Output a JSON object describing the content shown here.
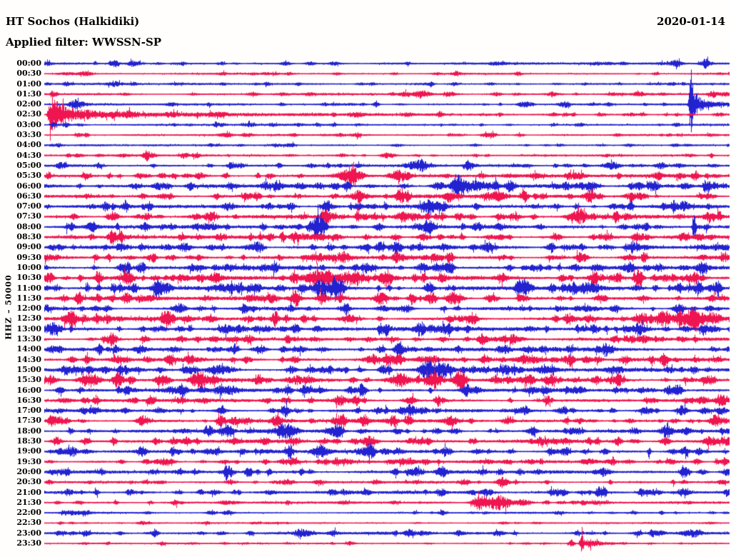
{
  "header": {
    "station_title": "HT Sochos (Halkidiki)",
    "date": "2020-01-14",
    "filter_label": "Applied filter: WWSSN-SP"
  },
  "axis": {
    "channel_scale_label": "HHZ – 50000"
  },
  "colors": {
    "trace_blue": "#2222d0",
    "trace_red": "#ee1550",
    "text": "#000000",
    "background": "#fffefc"
  },
  "chart_data": {
    "type": "line",
    "subtype": "helicorder-seismogram",
    "title": "HT Sochos (Halkidiki)",
    "date": "2020-01-14",
    "filter": "WWSSN-SP",
    "channel": "HHZ",
    "scale": 50000,
    "minutes_per_row": 30,
    "legend_position": "none",
    "grid": false,
    "row_color_cycle": [
      "blue",
      "red"
    ],
    "rows": [
      {
        "label": "00:00",
        "color": "blue",
        "noise": 1.2,
        "events": [
          [
            0.258,
            2,
            4
          ],
          [
            0.92,
            3,
            5
          ]
        ]
      },
      {
        "label": "00:30",
        "color": "red",
        "noise": 0.8,
        "events": [
          [
            0.057,
            2.5,
            6
          ],
          [
            0.261,
            1.5,
            4
          ]
        ]
      },
      {
        "label": "01:00",
        "color": "blue",
        "noise": 1.0,
        "events": [
          [
            0.102,
            3,
            7
          ],
          [
            0.915,
            2,
            4
          ]
        ]
      },
      {
        "label": "01:30",
        "color": "red",
        "noise": 1.1,
        "events": [
          [
            0.011,
            6,
            3,
            "q"
          ],
          [
            0.305,
            2.5,
            5
          ],
          [
            0.55,
            3,
            8
          ],
          [
            0.592,
            3,
            6
          ]
        ]
      },
      {
        "label": "02:00",
        "color": "blue",
        "noise": 1.0,
        "events": [
          [
            0.048,
            4,
            8
          ],
          [
            0.185,
            2,
            5
          ],
          [
            0.696,
            3,
            4
          ],
          [
            0.758,
            3.5,
            5
          ],
          [
            0.944,
            55,
            3,
            "q"
          ],
          [
            0.951,
            9,
            26,
            "q"
          ]
        ]
      },
      {
        "label": "02:30",
        "color": "red",
        "noise": 1.2,
        "events": [
          [
            0.008,
            22,
            12,
            "q"
          ],
          [
            0.012,
            7,
            60,
            "q"
          ],
          [
            0.02,
            3,
            200,
            "q"
          ],
          [
            0.248,
            2.5,
            6
          ],
          [
            0.456,
            2,
            5
          ]
        ]
      },
      {
        "label": "03:00",
        "color": "blue",
        "noise": 1.0,
        "events": [
          [
            0.013,
            5,
            2
          ],
          [
            0.3,
            2,
            5
          ]
        ]
      },
      {
        "label": "03:30",
        "color": "red",
        "noise": 0.9,
        "events": [
          [
            0.05,
            2,
            4
          ],
          [
            0.295,
            2.5,
            5
          ],
          [
            0.836,
            1.5,
            4
          ]
        ]
      },
      {
        "label": "04:00",
        "color": "blue",
        "noise": 0.8,
        "events": [
          [
            0.92,
            2,
            4
          ]
        ]
      },
      {
        "label": "04:30",
        "color": "red",
        "noise": 1.0,
        "events": [
          [
            0.149,
            5,
            3
          ],
          [
            0.203,
            3.5,
            4
          ],
          [
            0.435,
            2,
            5
          ]
        ]
      },
      {
        "label": "05:00",
        "color": "blue",
        "noise": 1.5,
        "events": [
          [
            0.548,
            5,
            9
          ],
          [
            0.623,
            3,
            6
          ],
          [
            0.828,
            5,
            8
          ]
        ]
      },
      {
        "label": "05:30",
        "color": "red",
        "noise": 1.8,
        "events": [
          [
            0.006,
            5,
            3
          ],
          [
            0.444,
            7,
            14
          ],
          [
            0.519,
            4,
            8
          ],
          [
            0.779,
            4,
            7
          ],
          [
            0.894,
            3,
            6
          ]
        ]
      },
      {
        "label": "06:00",
        "color": "blue",
        "noise": 2.2,
        "events": [
          [
            0.133,
            3,
            6
          ],
          [
            0.602,
            16,
            5
          ],
          [
            0.623,
            6,
            15
          ],
          [
            0.8,
            4,
            7
          ],
          [
            0.935,
            4,
            6
          ]
        ]
      },
      {
        "label": "06:30",
        "color": "red",
        "noise": 2.2,
        "events": [
          [
            0.175,
            3,
            6
          ],
          [
            0.31,
            6,
            4
          ],
          [
            0.456,
            4,
            8
          ],
          [
            0.665,
            4,
            7
          ]
        ]
      },
      {
        "label": "07:00",
        "color": "blue",
        "noise": 2.2,
        "events": [
          [
            0.415,
            4,
            6
          ],
          [
            0.56,
            6,
            8
          ],
          [
            0.935,
            4,
            5
          ]
        ]
      },
      {
        "label": "07:30",
        "color": "red",
        "noise": 2.2,
        "events": [
          [
            0.415,
            4,
            7
          ],
          [
            0.54,
            5,
            8
          ],
          [
            0.665,
            4,
            6
          ],
          [
            0.779,
            6,
            9
          ]
        ]
      },
      {
        "label": "08:00",
        "color": "blue",
        "noise": 2.2,
        "events": [
          [
            0.248,
            3,
            6
          ],
          [
            0.56,
            4,
            8
          ],
          [
            0.866,
            4,
            6
          ],
          [
            0.948,
            30,
            1.5
          ]
        ]
      },
      {
        "label": "08:30",
        "color": "red",
        "noise": 2.1,
        "events": [
          [
            0.404,
            4,
            8
          ],
          [
            0.665,
            3.5,
            6
          ],
          [
            0.956,
            4,
            6
          ]
        ]
      },
      {
        "label": "09:00",
        "color": "blue",
        "noise": 2.2,
        "events": [
          [
            0.3,
            3.5,
            7
          ],
          [
            0.644,
            4,
            7
          ],
          [
            0.821,
            3.5,
            6
          ]
        ]
      },
      {
        "label": "09:30",
        "color": "red",
        "noise": 2.0,
        "events": [
          [
            0.185,
            3.5,
            6
          ],
          [
            0.519,
            4,
            7
          ],
          [
            0.852,
            3.5,
            6
          ]
        ]
      },
      {
        "label": "10:00",
        "color": "blue",
        "noise": 2.2,
        "events": [
          [
            0.269,
            4,
            6
          ],
          [
            0.55,
            4,
            6
          ],
          [
            0.961,
            5,
            5
          ]
        ]
      },
      {
        "label": "10:30",
        "color": "red",
        "noise": 2.6,
        "events": [
          [
            0.118,
            5,
            8
          ],
          [
            0.399,
            6,
            18
          ],
          [
            0.451,
            7,
            12
          ],
          [
            0.498,
            5,
            8
          ],
          [
            0.831,
            4,
            7
          ]
        ]
      },
      {
        "label": "11:00",
        "color": "blue",
        "noise": 2.6,
        "events": [
          [
            0.258,
            4,
            7
          ],
          [
            0.402,
            12,
            6
          ],
          [
            0.425,
            11,
            7
          ],
          [
            0.8,
            6,
            7
          ],
          [
            0.977,
            6,
            6
          ]
        ]
      },
      {
        "label": "11:30",
        "color": "red",
        "noise": 2.2,
        "events": [
          [
            0.029,
            4,
            3
          ],
          [
            0.491,
            8,
            6
          ],
          [
            0.602,
            4,
            7
          ],
          [
            0.81,
            3.5,
            6
          ]
        ]
      },
      {
        "label": "12:00",
        "color": "blue",
        "noise": 1.9,
        "events": [
          [
            0.196,
            4,
            5
          ],
          [
            0.524,
            4,
            6
          ],
          [
            0.925,
            5,
            6
          ]
        ]
      },
      {
        "label": "12:30",
        "color": "red",
        "noise": 2.4,
        "events": [
          [
            0.04,
            4,
            5
          ],
          [
            0.446,
            6,
            9
          ],
          [
            0.623,
            4,
            7
          ],
          [
            0.873,
            7,
            8
          ],
          [
            0.941,
            8,
            9
          ],
          [
            0.972,
            7,
            6
          ]
        ]
      },
      {
        "label": "13:00",
        "color": "blue",
        "noise": 2.4,
        "events": [
          [
            0.014,
            6,
            4
          ],
          [
            0.321,
            4,
            7
          ],
          [
            0.581,
            4,
            6
          ],
          [
            0.935,
            4,
            6
          ]
        ]
      },
      {
        "label": "13:30",
        "color": "red",
        "noise": 2.0,
        "events": [
          [
            0.248,
            3.5,
            6
          ],
          [
            0.644,
            4,
            7
          ],
          [
            0.873,
            4,
            6
          ]
        ]
      },
      {
        "label": "14:00",
        "color": "blue",
        "noise": 2.1,
        "events": [
          [
            0.373,
            4,
            7
          ],
          [
            0.706,
            4,
            6
          ]
        ]
      },
      {
        "label": "14:30",
        "color": "red",
        "noise": 2.2,
        "events": [
          [
            0.107,
            4,
            6
          ],
          [
            0.477,
            4,
            7
          ],
          [
            0.711,
            6,
            7
          ],
          [
            0.764,
            5,
            6
          ]
        ]
      },
      {
        "label": "15:00",
        "color": "blue",
        "noise": 2.3,
        "events": [
          [
            0.269,
            4,
            6
          ],
          [
            0.56,
            13,
            7
          ],
          [
            0.583,
            10,
            8
          ],
          [
            0.727,
            4,
            6
          ]
        ]
      },
      {
        "label": "15:30",
        "color": "red",
        "noise": 2.4,
        "events": [
          [
            0.066,
            11,
            9
          ],
          [
            0.107,
            6,
            6
          ],
          [
            0.225,
            9,
            8
          ],
          [
            0.519,
            6,
            14
          ],
          [
            0.571,
            7,
            8
          ],
          [
            0.602,
            6,
            6
          ]
        ]
      },
      {
        "label": "16:00",
        "color": "blue",
        "noise": 2.2,
        "events": [
          [
            0.185,
            3.5,
            6
          ],
          [
            0.711,
            4,
            6
          ],
          [
            0.911,
            6,
            4
          ]
        ]
      },
      {
        "label": "16:30",
        "color": "red",
        "noise": 1.9,
        "events": [
          [
            0.196,
            3,
            5
          ],
          [
            0.435,
            4,
            6
          ],
          [
            0.987,
            4,
            5
          ]
        ]
      },
      {
        "label": "17:00",
        "color": "blue",
        "noise": 1.9,
        "events": [
          [
            0.071,
            3.5,
            5
          ],
          [
            0.534,
            4,
            6
          ],
          [
            0.878,
            5,
            6
          ]
        ]
      },
      {
        "label": "17:30",
        "color": "red",
        "noise": 2.0,
        "events": [
          [
            0.024,
            4,
            4
          ],
          [
            0.258,
            7,
            4
          ],
          [
            0.592,
            4,
            6
          ],
          [
            0.977,
            5,
            6
          ]
        ]
      },
      {
        "label": "18:00",
        "color": "blue",
        "noise": 2.0,
        "events": [
          [
            0.267,
            6,
            5
          ],
          [
            0.342,
            4,
            8
          ],
          [
            0.711,
            4,
            6
          ],
          [
            0.904,
            4,
            5
          ]
        ]
      },
      {
        "label": "18:30",
        "color": "red",
        "noise": 2.0,
        "events": [
          [
            0.363,
            5,
            6
          ],
          [
            0.453,
            4,
            6
          ],
          [
            0.992,
            6,
            5
          ]
        ]
      },
      {
        "label": "19:00",
        "color": "blue",
        "noise": 2.0,
        "events": [
          [
            0.357,
            11,
            3
          ],
          [
            0.404,
            6,
            8
          ],
          [
            0.467,
            4,
            8
          ],
          [
            0.758,
            4,
            6
          ]
        ]
      },
      {
        "label": "19:30",
        "color": "red",
        "noise": 1.7,
        "events": [
          [
            0.175,
            3.5,
            5
          ],
          [
            0.44,
            3.5,
            6
          ],
          [
            0.789,
            3,
            5
          ]
        ]
      },
      {
        "label": "20:00",
        "color": "blue",
        "noise": 1.9,
        "events": [
          [
            0.269,
            4,
            6
          ],
          [
            0.54,
            5,
            6
          ],
          [
            0.821,
            3.5,
            5
          ]
        ]
      },
      {
        "label": "20:30",
        "color": "red",
        "noise": 1.3,
        "events": [
          [
            0.352,
            3,
            6
          ],
          [
            0.665,
            3,
            5
          ]
        ]
      },
      {
        "label": "21:00",
        "color": "blue",
        "noise": 1.9,
        "events": [
          [
            0.248,
            3,
            5
          ],
          [
            0.644,
            3.5,
            5
          ],
          [
            0.873,
            3.5,
            5
          ]
        ]
      },
      {
        "label": "21:30",
        "color": "red",
        "noise": 1.2,
        "events": [
          [
            0.191,
            3.5,
            4
          ],
          [
            0.638,
            11,
            8
          ],
          [
            0.665,
            10,
            9
          ],
          [
            0.696,
            4,
            6
          ]
        ]
      },
      {
        "label": "22:00",
        "color": "blue",
        "noise": 0.8,
        "events": [
          [
            0.04,
            2.5,
            8
          ],
          [
            0.06,
            2.5,
            6
          ],
          [
            0.581,
            2,
            4
          ]
        ]
      },
      {
        "label": "22:30",
        "color": "red",
        "noise": 0.6,
        "events": [
          [
            0.024,
            2,
            3
          ],
          [
            0.142,
            2.5,
            4
          ]
        ]
      },
      {
        "label": "23:00",
        "color": "blue",
        "noise": 1.6,
        "events": [
          [
            0.371,
            2.5,
            6
          ]
        ]
      },
      {
        "label": "23:30",
        "color": "red",
        "noise": 0.6,
        "events": [
          [
            0.17,
            2,
            3
          ],
          [
            0.446,
            2.5,
            4
          ],
          [
            0.769,
            5,
            3
          ],
          [
            0.784,
            17,
            3,
            "q"
          ],
          [
            0.795,
            6,
            18,
            "q"
          ]
        ]
      }
    ]
  }
}
